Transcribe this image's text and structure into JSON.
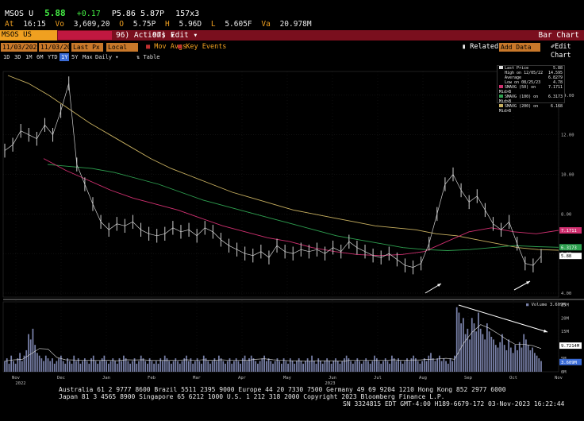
{
  "quote": {
    "ticker": "MSOS U",
    "price": "5.88",
    "change": "+0.17",
    "bid_ask": "P5.86 5.87P",
    "size": "157x3"
  },
  "stats": {
    "at_label": "At",
    "time": "16:15",
    "vol_label": "Vo",
    "volume": "3,609,20",
    "open_label": "O",
    "open": "5.75P",
    "high_label": "H",
    "high": "5.96D",
    "low_label": "L",
    "low": "5.605F",
    "value_label": "Va",
    "value": "20.978M"
  },
  "title_bar": {
    "security": "MSOS US Equity",
    "actions": "96) Actions ▾",
    "edit": "97) Edit ▾",
    "chart_title": "Bar Chart"
  },
  "toolbar1": {
    "start_date": "11/03/2022",
    "end_date": "11/03/2023",
    "price_field": "Last Px",
    "currency": "Local CCY",
    "mov_avgs": "Mov Avgs",
    "key_events": "Key Events",
    "related_data": "Related Data",
    "add_data": "Add Data",
    "edit_chart": "Edit Chart"
  },
  "toolbar2": {
    "tabs": [
      "1D",
      "3D",
      "1M",
      "6M",
      "YTD",
      "1Y",
      "5Y",
      "Max",
      "Daily ▾"
    ],
    "table": "Table"
  },
  "legend": {
    "last_price_label": "Last Price",
    "last_price": "5.88",
    "high_label": "High on 12/05/22",
    "high": "14.595",
    "average_label": "Average",
    "average": "6.8279",
    "low_label": "Low on 08/25/23",
    "low": "4.78",
    "sma50_label": "SMAVG (50) on Mid>B",
    "sma50": "7.1711",
    "sma100_label": "SMAVG (100) on Mid>B",
    "sma100": "6.3173",
    "sma200_label": "SMAVG (200) on Mid>B",
    "sma200": "6.168",
    "volume_label": "Volume",
    "volume": "3.609M"
  },
  "colors": {
    "sma50": "#d03070",
    "sma100": "#2ea050",
    "sma200": "#c8b060",
    "price": "#d0d0d0",
    "volume": "#7880a8"
  },
  "chart_data": {
    "type": "line",
    "x_ticks": [
      "Nov",
      "Dec",
      "Jan",
      "Feb",
      "Mar",
      "Apr",
      "May",
      "Jun",
      "Jul",
      "Aug",
      "Sep",
      "Oct",
      "Nov"
    ],
    "x_year_labels": [
      "2022",
      "2023"
    ],
    "price_ticks": [
      "14.00",
      "12.00",
      "10.00",
      "8.00",
      "6.00",
      "4.00"
    ],
    "volume_ticks": [
      "25M",
      "20M",
      "15M",
      "10M",
      "5M",
      "0M"
    ],
    "price_ylim": [
      3.8,
      15.2
    ],
    "volume_ylim": [
      0,
      26
    ],
    "price_axis_tags": [
      "7.1711",
      "6.3173",
      "5.88"
    ],
    "volume_axis_tags": [
      "9.7214M",
      "3.609M"
    ],
    "months": [
      "Nov 2022",
      "Dec",
      "Jan",
      "Feb",
      "Mar",
      "Apr",
      "May",
      "Jun",
      "Jul",
      "Aug",
      "Sep",
      "Oct",
      "Nov 2023"
    ],
    "price_series": {
      "name": "Last Price",
      "values": [
        11.2,
        11.5,
        12.2,
        12.0,
        11.8,
        12.5,
        12.0,
        13.2,
        14.6,
        10.5,
        9.5,
        8.5,
        7.6,
        7.2,
        7.5,
        7.4,
        7.6,
        7.2,
        7.0,
        6.9,
        7.0,
        7.3,
        7.1,
        7.2,
        6.9,
        7.3,
        7.1,
        6.7,
        6.4,
        6.2,
        6.0,
        5.9,
        6.1,
        5.8,
        6.4,
        6.1,
        6.0,
        6.2,
        6.1,
        6.2,
        6.0,
        6.3,
        6.1,
        6.6,
        6.3,
        6.1,
        5.9,
        5.8,
        6.0,
        5.7,
        5.4,
        5.3,
        5.5,
        6.5,
        8.0,
        9.5,
        10.0,
        9.2,
        8.6,
        8.9,
        8.2,
        7.5,
        7.2,
        7.6,
        6.5,
        5.5,
        5.4,
        5.88
      ]
    },
    "sma200": {
      "name": "SMAVG (200)",
      "values": [
        15.0,
        14.6,
        14.0,
        13.3,
        12.6,
        12.0,
        11.4,
        10.8,
        10.3,
        9.9,
        9.5,
        9.1,
        8.8,
        8.5,
        8.2,
        8.0,
        7.8,
        7.6,
        7.4,
        7.3,
        7.2,
        7.0,
        6.9,
        6.7,
        6.5,
        6.3,
        6.2,
        6.168
      ]
    },
    "sma100": {
      "name": "SMAVG (100)",
      "values": [
        10.5,
        10.4,
        10.3,
        10.1,
        9.8,
        9.5,
        9.1,
        8.7,
        8.4,
        8.1,
        7.8,
        7.5,
        7.2,
        6.9,
        6.7,
        6.5,
        6.3,
        6.2,
        6.15,
        6.2,
        6.3,
        6.4,
        6.35,
        6.3173
      ]
    },
    "sma50": {
      "name": "SMAVG (50)",
      "values": [
        10.8,
        10.2,
        9.7,
        9.2,
        8.8,
        8.5,
        8.2,
        7.8,
        7.4,
        7.1,
        6.8,
        6.6,
        6.3,
        6.1,
        5.95,
        5.9,
        5.95,
        6.1,
        6.6,
        7.1,
        7.3,
        7.1,
        7.0,
        7.1711
      ]
    },
    "volume": {
      "name": "Volume",
      "values": [
        4,
        5,
        3,
        6,
        4,
        3,
        5,
        7,
        4,
        6,
        8,
        14,
        12,
        16,
        10,
        7,
        6,
        5,
        4,
        6,
        5,
        4,
        5,
        3,
        4,
        5,
        6,
        4,
        3,
        5,
        4,
        3,
        6,
        4,
        5,
        3,
        4,
        5,
        4,
        3,
        5,
        6,
        4,
        3,
        4,
        5,
        6,
        4,
        3,
        4,
        5,
        4,
        3,
        5,
        4,
        6,
        5,
        4,
        3,
        4,
        5,
        3,
        4,
        6,
        5,
        4,
        3,
        5,
        4,
        3,
        4,
        3,
        5,
        4,
        6,
        5,
        4,
        3,
        4,
        5,
        4,
        3,
        4,
        5,
        6,
        4,
        5,
        3,
        4,
        5,
        4,
        3,
        6,
        5,
        4,
        3,
        4,
        5,
        4,
        6,
        5,
        4,
        3,
        4,
        5,
        3,
        4,
        5,
        4,
        3,
        5,
        6,
        4,
        5,
        6,
        5,
        4,
        3,
        4,
        5,
        6,
        4,
        5,
        4,
        3,
        4,
        5,
        4,
        3,
        5,
        4,
        3,
        5,
        4,
        3,
        4,
        5,
        4,
        3,
        4,
        5,
        4,
        6,
        4,
        3,
        5,
        4,
        3,
        4,
        5,
        4,
        3,
        4,
        5,
        4,
        3,
        4,
        5,
        6,
        5,
        4,
        3,
        4,
        5,
        4,
        3,
        4,
        5,
        4,
        3,
        4,
        6,
        5,
        4,
        3,
        4,
        5,
        4,
        3,
        6,
        5,
        4,
        5,
        4,
        3,
        4,
        5,
        4,
        5,
        6,
        5,
        4,
        3,
        4,
        5,
        4,
        6,
        7,
        5,
        4,
        5,
        6,
        4,
        5,
        4,
        3,
        5,
        4,
        6,
        24,
        22,
        18,
        20,
        14,
        16,
        12,
        20,
        18,
        15,
        22,
        16,
        14,
        12,
        18,
        15,
        13,
        12,
        10,
        9,
        11,
        14,
        10,
        8,
        12,
        9,
        7,
        10,
        8,
        11,
        9,
        14,
        12,
        10,
        8,
        9,
        7,
        6,
        5,
        4
      ]
    }
  },
  "footer": {
    "line1": "Australia 61 2 9777 8600 Brazil 5511 2395 9000 Europe 44 20 7330 7500 Germany 49 69 9204 1210 Hong Kong 852 2977 6000",
    "line2": "Japan 81 3 4565 8900       Singapore 65 6212 1000       U.S. 1 212 318 2000       Copyright 2023 Bloomberg Finance L.P.",
    "line3": "SN 3324815 EDT  GMT-4:00 H189-6679-172 03-Nov-2023 16:22:44"
  }
}
